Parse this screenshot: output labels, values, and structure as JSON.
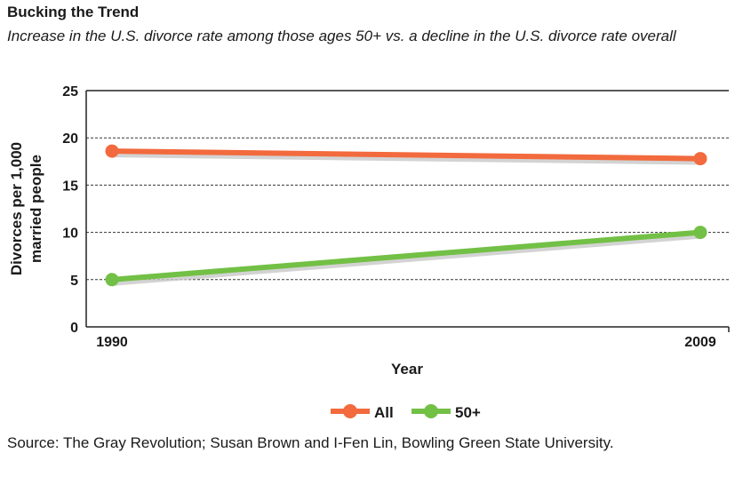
{
  "chart_data": {
    "type": "line",
    "title": "Bucking the Trend",
    "subtitle": "Increase in the U.S. divorce rate among those ages 50+ vs. a decline in the U.S. divorce rate overall",
    "xlabel": "Year",
    "ylabel_lines": [
      "Divorces per 1,000",
      "married people"
    ],
    "categories": [
      "1990",
      "2009"
    ],
    "yticks": [
      "0",
      "5",
      "10",
      "15",
      "20",
      "25"
    ],
    "ylim": [
      0,
      25
    ],
    "grid": "horizontal dashed",
    "legend_position": "bottom",
    "series": [
      {
        "name": "All",
        "color": "#f26a3d",
        "values": [
          18.6,
          17.8
        ]
      },
      {
        "name": "50+",
        "color": "#72c045",
        "values": [
          5.0,
          10.0
        ]
      }
    ],
    "source": "Source: The Gray Revolution; Susan Brown and I-Fen Lin, Bowling Green State University."
  }
}
